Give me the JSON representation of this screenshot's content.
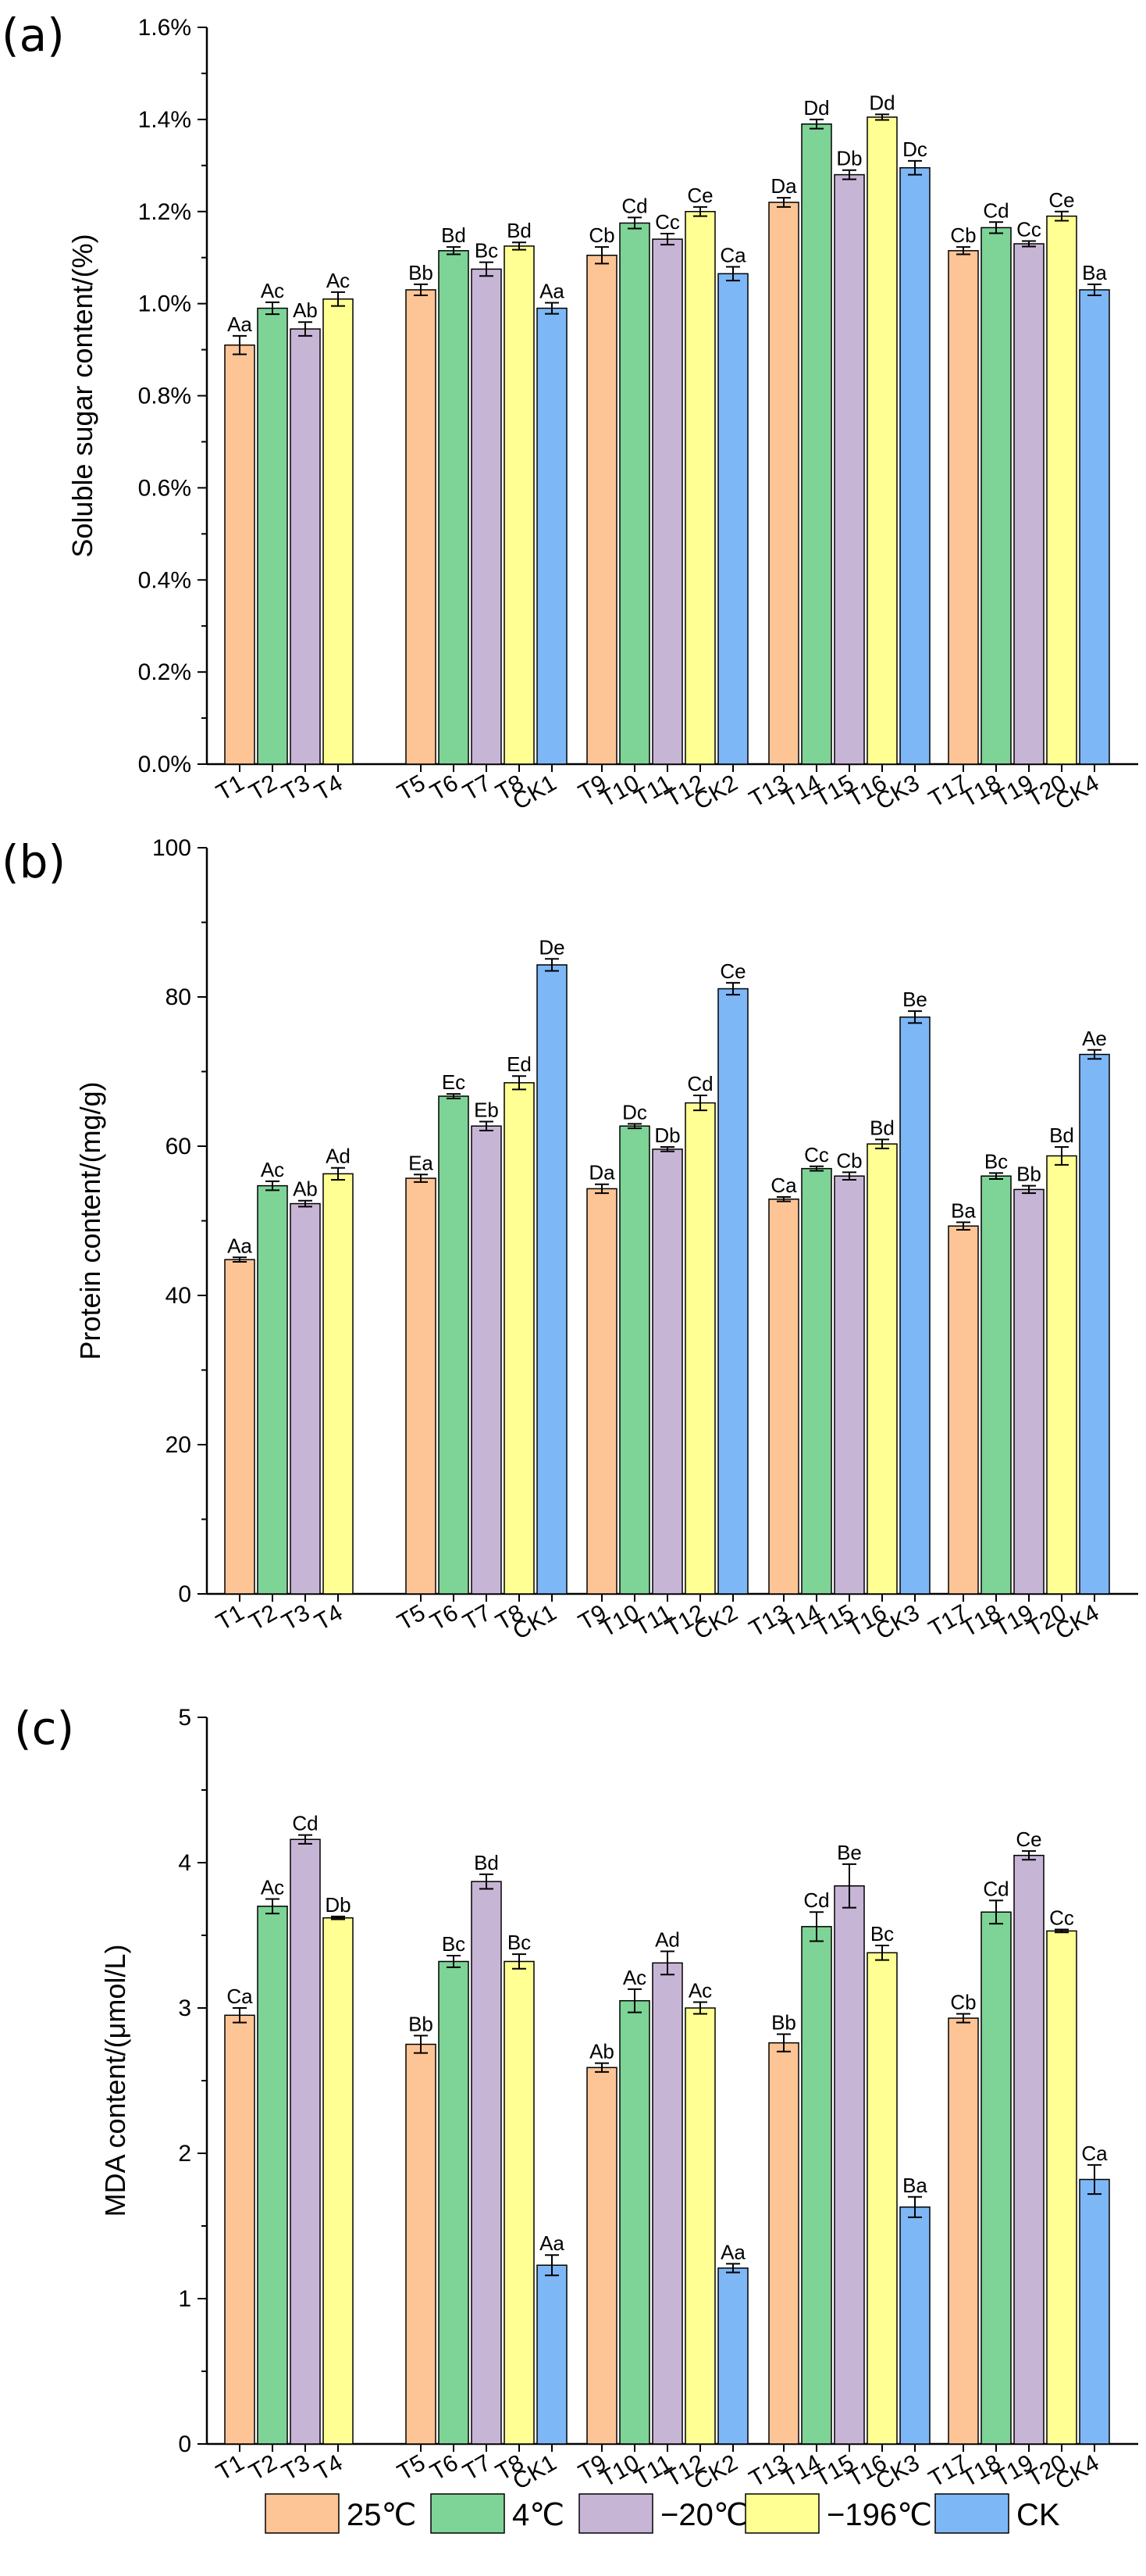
{
  "chart_data": [
    {
      "type": "bar",
      "panel_label": "(a)",
      "ylabel": "Soluble sugar content/(%)",
      "ylim": [
        0,
        1.6
      ],
      "yticks": [
        "0.0%",
        "0.2%",
        "0.4%",
        "0.6%",
        "0.8%",
        "1.0%",
        "1.2%",
        "1.4%",
        "1.6%"
      ],
      "groups": [
        {
          "bars": [
            {
              "cat": "T1",
              "series": "25℃",
              "value": 0.91,
              "err": 0.02,
              "label": "Aa"
            },
            {
              "cat": "T2",
              "series": "4℃",
              "value": 0.99,
              "err": 0.013,
              "label": "Ac"
            },
            {
              "cat": "T3",
              "series": "−20℃",
              "value": 0.945,
              "err": 0.015,
              "label": "Ab"
            },
            {
              "cat": "T4",
              "series": "−196℃",
              "value": 1.01,
              "err": 0.015,
              "label": "Ac"
            }
          ]
        },
        {
          "bars": [
            {
              "cat": "T5",
              "series": "25℃",
              "value": 1.03,
              "err": 0.012,
              "label": "Bb"
            },
            {
              "cat": "T6",
              "series": "4℃",
              "value": 1.115,
              "err": 0.008,
              "label": "Bd"
            },
            {
              "cat": "T7",
              "series": "−20℃",
              "value": 1.075,
              "err": 0.015,
              "label": "Bc"
            },
            {
              "cat": "T8",
              "series": "−196℃",
              "value": 1.125,
              "err": 0.008,
              "label": "Bd"
            },
            {
              "cat": "CK1",
              "series": "CK",
              "value": 0.99,
              "err": 0.012,
              "label": "Aa"
            }
          ]
        },
        {
          "bars": [
            {
              "cat": "T9",
              "series": "25℃",
              "value": 1.105,
              "err": 0.018,
              "label": "Cb"
            },
            {
              "cat": "T10",
              "series": "4℃",
              "value": 1.175,
              "err": 0.012,
              "label": "Cd"
            },
            {
              "cat": "T11",
              "series": "−20℃",
              "value": 1.14,
              "err": 0.012,
              "label": "Cc"
            },
            {
              "cat": "T12",
              "series": "−196℃",
              "value": 1.2,
              "err": 0.01,
              "label": "Ce"
            },
            {
              "cat": "CK2",
              "series": "CK",
              "value": 1.065,
              "err": 0.015,
              "label": "Ca"
            }
          ]
        },
        {
          "bars": [
            {
              "cat": "T13",
              "series": "25℃",
              "value": 1.22,
              "err": 0.01,
              "label": "Da"
            },
            {
              "cat": "T14",
              "series": "4℃",
              "value": 1.39,
              "err": 0.01,
              "label": "Dd"
            },
            {
              "cat": "T15",
              "series": "−20℃",
              "value": 1.28,
              "err": 0.01,
              "label": "Db"
            },
            {
              "cat": "T16",
              "series": "−196℃",
              "value": 1.405,
              "err": 0.006,
              "label": "Dd"
            },
            {
              "cat": "CK3",
              "series": "CK",
              "value": 1.295,
              "err": 0.015,
              "label": "Dc"
            }
          ]
        },
        {
          "bars": [
            {
              "cat": "T17",
              "series": "25℃",
              "value": 1.115,
              "err": 0.008,
              "label": "Cb"
            },
            {
              "cat": "T18",
              "series": "4℃",
              "value": 1.165,
              "err": 0.012,
              "label": "Cd"
            },
            {
              "cat": "T19",
              "series": "−20℃",
              "value": 1.13,
              "err": 0.006,
              "label": "Cc"
            },
            {
              "cat": "T20",
              "series": "−196℃",
              "value": 1.19,
              "err": 0.01,
              "label": "Ce"
            },
            {
              "cat": "CK4",
              "series": "CK",
              "value": 1.03,
              "err": 0.012,
              "label": "Ba"
            }
          ]
        }
      ]
    },
    {
      "type": "bar",
      "panel_label": "(b)",
      "ylabel": "Protein content/(mg/g)",
      "ylim": [
        0,
        100
      ],
      "yticks": [
        "0",
        "20",
        "40",
        "60",
        "80",
        "100"
      ],
      "groups": [
        {
          "bars": [
            {
              "cat": "T1",
              "series": "25℃",
              "value": 44.8,
              "err": 0.3,
              "label": "Aa"
            },
            {
              "cat": "T2",
              "series": "4℃",
              "value": 54.7,
              "err": 0.6,
              "label": "Ac"
            },
            {
              "cat": "T3",
              "series": "−20℃",
              "value": 52.3,
              "err": 0.4,
              "label": "Ab"
            },
            {
              "cat": "T4",
              "series": "−196℃",
              "value": 56.3,
              "err": 0.8,
              "label": "Ad"
            }
          ]
        },
        {
          "bars": [
            {
              "cat": "T5",
              "series": "25℃",
              "value": 55.7,
              "err": 0.5,
              "label": "Ea"
            },
            {
              "cat": "T6",
              "series": "4℃",
              "value": 66.7,
              "err": 0.3,
              "label": "Ec"
            },
            {
              "cat": "T7",
              "series": "−20℃",
              "value": 62.7,
              "err": 0.6,
              "label": "Eb"
            },
            {
              "cat": "T8",
              "series": "−196℃",
              "value": 68.5,
              "err": 0.9,
              "label": "Ed"
            },
            {
              "cat": "CK1",
              "series": "CK",
              "value": 84.3,
              "err": 0.8,
              "label": "De"
            }
          ]
        },
        {
          "bars": [
            {
              "cat": "T9",
              "series": "25℃",
              "value": 54.3,
              "err": 0.6,
              "label": "Da"
            },
            {
              "cat": "T10",
              "series": "4℃",
              "value": 62.7,
              "err": 0.3,
              "label": "Dc"
            },
            {
              "cat": "T11",
              "series": "−20℃",
              "value": 59.6,
              "err": 0.3,
              "label": "Db"
            },
            {
              "cat": "T12",
              "series": "−196℃",
              "value": 65.8,
              "err": 1.0,
              "label": "Cd"
            },
            {
              "cat": "CK2",
              "series": "CK",
              "value": 81.1,
              "err": 0.8,
              "label": "Ce"
            }
          ]
        },
        {
          "bars": [
            {
              "cat": "T13",
              "series": "25℃",
              "value": 52.9,
              "err": 0.3,
              "label": "Ca"
            },
            {
              "cat": "T14",
              "series": "4℃",
              "value": 57.0,
              "err": 0.3,
              "label": "Cc"
            },
            {
              "cat": "T15",
              "series": "−20℃",
              "value": 56.0,
              "err": 0.5,
              "label": "Cb"
            },
            {
              "cat": "T16",
              "series": "−196℃",
              "value": 60.3,
              "err": 0.6,
              "label": "Bd"
            },
            {
              "cat": "CK3",
              "series": "CK",
              "value": 77.3,
              "err": 0.8,
              "label": "Be"
            }
          ]
        },
        {
          "bars": [
            {
              "cat": "T17",
              "series": "25℃",
              "value": 49.3,
              "err": 0.5,
              "label": "Ba"
            },
            {
              "cat": "T18",
              "series": "4℃",
              "value": 56.0,
              "err": 0.4,
              "label": "Bc"
            },
            {
              "cat": "T19",
              "series": "−20℃",
              "value": 54.2,
              "err": 0.5,
              "label": "Bb"
            },
            {
              "cat": "T20",
              "series": "−196℃",
              "value": 58.7,
              "err": 1.2,
              "label": "Bd"
            },
            {
              "cat": "CK4",
              "series": "CK",
              "value": 72.3,
              "err": 0.6,
              "label": "Ae"
            }
          ]
        }
      ]
    },
    {
      "type": "bar",
      "panel_label": "(c)",
      "ylabel": "MDA content/(μmol/L)",
      "ylim": [
        0,
        5
      ],
      "yticks": [
        "0",
        "1",
        "2",
        "3",
        "4",
        "5"
      ],
      "groups": [
        {
          "bars": [
            {
              "cat": "T1",
              "series": "25℃",
              "value": 2.95,
              "err": 0.05,
              "label": "Ca"
            },
            {
              "cat": "T2",
              "series": "4℃",
              "value": 3.7,
              "err": 0.05,
              "label": "Ac"
            },
            {
              "cat": "T3",
              "series": "−20℃",
              "value": 4.16,
              "err": 0.03,
              "label": "Cd"
            },
            {
              "cat": "T4",
              "series": "−196℃",
              "value": 3.62,
              "err": 0.01,
              "label": "Db"
            }
          ]
        },
        {
          "bars": [
            {
              "cat": "T5",
              "series": "25℃",
              "value": 2.75,
              "err": 0.06,
              "label": "Bb"
            },
            {
              "cat": "T6",
              "series": "4℃",
              "value": 3.32,
              "err": 0.04,
              "label": "Bc"
            },
            {
              "cat": "T7",
              "series": "−20℃",
              "value": 3.87,
              "err": 0.05,
              "label": "Bd"
            },
            {
              "cat": "T8",
              "series": "−196℃",
              "value": 3.32,
              "err": 0.05,
              "label": "Bc"
            },
            {
              "cat": "CK1",
              "series": "CK",
              "value": 1.23,
              "err": 0.07,
              "label": "Aa"
            }
          ]
        },
        {
          "bars": [
            {
              "cat": "T9",
              "series": "25℃",
              "value": 2.59,
              "err": 0.03,
              "label": "Ab"
            },
            {
              "cat": "T10",
              "series": "4℃",
              "value": 3.05,
              "err": 0.08,
              "label": "Ac"
            },
            {
              "cat": "T11",
              "series": "−20℃",
              "value": 3.31,
              "err": 0.08,
              "label": "Ad"
            },
            {
              "cat": "T12",
              "series": "−196℃",
              "value": 3.0,
              "err": 0.04,
              "label": "Ac"
            },
            {
              "cat": "CK2",
              "series": "CK",
              "value": 1.21,
              "err": 0.03,
              "label": "Aa"
            }
          ]
        },
        {
          "bars": [
            {
              "cat": "T13",
              "series": "25℃",
              "value": 2.76,
              "err": 0.06,
              "label": "Bb"
            },
            {
              "cat": "T14",
              "series": "4℃",
              "value": 3.56,
              "err": 0.1,
              "label": "Cd"
            },
            {
              "cat": "T15",
              "series": "−20℃",
              "value": 3.84,
              "err": 0.15,
              "label": "Be"
            },
            {
              "cat": "T16",
              "series": "−196℃",
              "value": 3.38,
              "err": 0.05,
              "label": "Bc"
            },
            {
              "cat": "CK3",
              "series": "CK",
              "value": 1.63,
              "err": 0.07,
              "label": "Ba"
            }
          ]
        },
        {
          "bars": [
            {
              "cat": "T17",
              "series": "25℃",
              "value": 2.93,
              "err": 0.03,
              "label": "Cb"
            },
            {
              "cat": "T18",
              "series": "4℃",
              "value": 3.66,
              "err": 0.08,
              "label": "Cd"
            },
            {
              "cat": "T19",
              "series": "−20℃",
              "value": 4.05,
              "err": 0.03,
              "label": "Ce"
            },
            {
              "cat": "T20",
              "series": "−196℃",
              "value": 3.53,
              "err": 0.01,
              "label": "Cc"
            },
            {
              "cat": "CK4",
              "series": "CK",
              "value": 1.82,
              "err": 0.1,
              "label": "Ca"
            }
          ]
        }
      ]
    }
  ],
  "legend": [
    {
      "name": "25℃",
      "color": "#FDC496"
    },
    {
      "name": "4℃",
      "color": "#7ED396"
    },
    {
      "name": "−20℃",
      "color": "#C7B5D6"
    },
    {
      "name": "−196℃",
      "color": "#FFFF94"
    },
    {
      "name": "CK",
      "color": "#7EB7F5"
    }
  ]
}
